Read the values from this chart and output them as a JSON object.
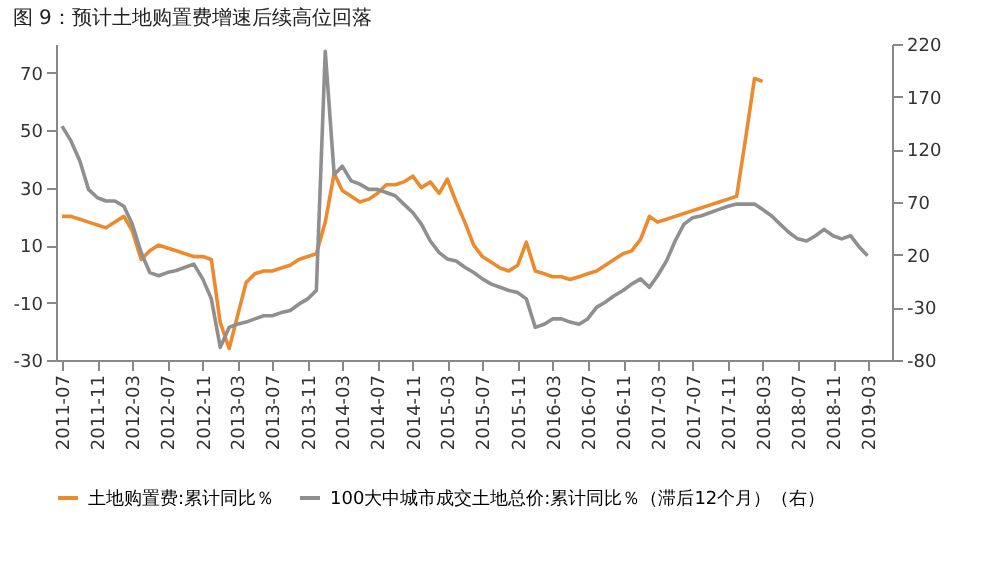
{
  "chart_data": {
    "type": "line",
    "title": "图 9：预计土地购置费增速后续高位回落",
    "x": [
      "2011-07",
      "2011-08",
      "2011-09",
      "2011-10",
      "2011-11",
      "2011-12",
      "2012-01",
      "2012-02",
      "2012-03",
      "2012-04",
      "2012-05",
      "2012-06",
      "2012-07",
      "2012-08",
      "2012-09",
      "2012-10",
      "2012-11",
      "2012-12",
      "2013-01",
      "2013-02",
      "2013-03",
      "2013-04",
      "2013-05",
      "2013-06",
      "2013-07",
      "2013-08",
      "2013-09",
      "2013-10",
      "2013-11",
      "2013-12",
      "2014-01",
      "2014-02",
      "2014-03",
      "2014-04",
      "2014-05",
      "2014-06",
      "2014-07",
      "2014-08",
      "2014-09",
      "2014-10",
      "2014-11",
      "2014-12",
      "2015-01",
      "2015-02",
      "2015-03",
      "2015-04",
      "2015-05",
      "2015-06",
      "2015-07",
      "2015-08",
      "2015-09",
      "2015-10",
      "2015-11",
      "2015-12",
      "2016-01",
      "2016-02",
      "2016-03",
      "2016-04",
      "2016-05",
      "2016-06",
      "2016-07",
      "2016-08",
      "2016-09",
      "2016-10",
      "2016-11",
      "2016-12",
      "2017-01",
      "2017-02",
      "2017-03",
      "2017-04",
      "2017-05",
      "2017-06",
      "2017-07",
      "2017-08",
      "2017-09",
      "2017-10",
      "2017-11",
      "2017-12",
      "2018-01",
      "2018-02",
      "2018-03",
      "2018-04",
      "2018-05",
      "2018-06",
      "2018-07",
      "2018-08",
      "2018-09",
      "2018-10",
      "2018-11",
      "2018-12",
      "2019-01",
      "2019-02",
      "2019-03"
    ],
    "series": [
      {
        "name": "土地购置费:累计同比％",
        "color": "#ee8a2e",
        "values": [
          20,
          20,
          19,
          18,
          17,
          16,
          18,
          20,
          15,
          5,
          8,
          10,
          9,
          8,
          7,
          6,
          6,
          5,
          -17,
          -26,
          -15,
          -3,
          0,
          1,
          1,
          2,
          3,
          5,
          6,
          7,
          18,
          35,
          29,
          27,
          25,
          26,
          28,
          31,
          31,
          32,
          34,
          30,
          32,
          28,
          33,
          25,
          18,
          10,
          6,
          4,
          2,
          1,
          3,
          11,
          1,
          0,
          -1,
          -1,
          -2,
          -1,
          0,
          1,
          3,
          5,
          7,
          8,
          12,
          20,
          18,
          19,
          20,
          21,
          22,
          23,
          24,
          25,
          26,
          27,
          47,
          68,
          67,
          null,
          null,
          null,
          null,
          null,
          null,
          null,
          null,
          null,
          null,
          null,
          null
        ]
      },
      {
        "name": "100大中城市成交土地总价:累计同比％（滞后12个月）（右）",
        "color": "#8f8f8f",
        "axis": "y2",
        "values": [
          142,
          128,
          109,
          82,
          74,
          71,
          71,
          66,
          49,
          22,
          3,
          0,
          3,
          5,
          8,
          11,
          -3,
          -22,
          -68,
          -49,
          -46,
          -44,
          -41,
          -38,
          -38,
          -35,
          -33,
          -27,
          -22,
          -14,
          213,
          96,
          104,
          90,
          87,
          82,
          82,
          79,
          76,
          68,
          60,
          49,
          33,
          22,
          16,
          14,
          8,
          3,
          -3,
          -8,
          -11,
          -14,
          -16,
          -22,
          -49,
          -46,
          -41,
          -41,
          -44,
          -46,
          -41,
          -30,
          -25,
          -19,
          -14,
          -8,
          -3,
          -11,
          0,
          14,
          33,
          49,
          55,
          57,
          60,
          63,
          66,
          68,
          68,
          68,
          63,
          57,
          49,
          41,
          35,
          33,
          38,
          44,
          38,
          35,
          38,
          27,
          19
        ]
      }
    ],
    "xlim": [
      "2011-06-10",
      "2019-05-25"
    ],
    "xticks": [
      "2011-07",
      "2011-11",
      "2012-03",
      "2012-07",
      "2012-11",
      "2013-03",
      "2013-07",
      "2013-11",
      "2014-03",
      "2014-07",
      "2014-11",
      "2015-03",
      "2015-07",
      "2015-11",
      "2016-03",
      "2016-07",
      "2016-11",
      "2017-03",
      "2017-07",
      "2017-11",
      "2018-03",
      "2018-07",
      "2018-11",
      "2019-03"
    ],
    "ylim": [
      -30,
      80
    ],
    "yticks": [
      -30,
      -10,
      10,
      30,
      50,
      70
    ],
    "y2lim": [
      -80,
      220
    ],
    "y2ticks": [
      -80,
      -30,
      20,
      70,
      120,
      170,
      220
    ],
    "grid": false,
    "legend": "bottom",
    "line_style": "solid",
    "marker": "none"
  }
}
